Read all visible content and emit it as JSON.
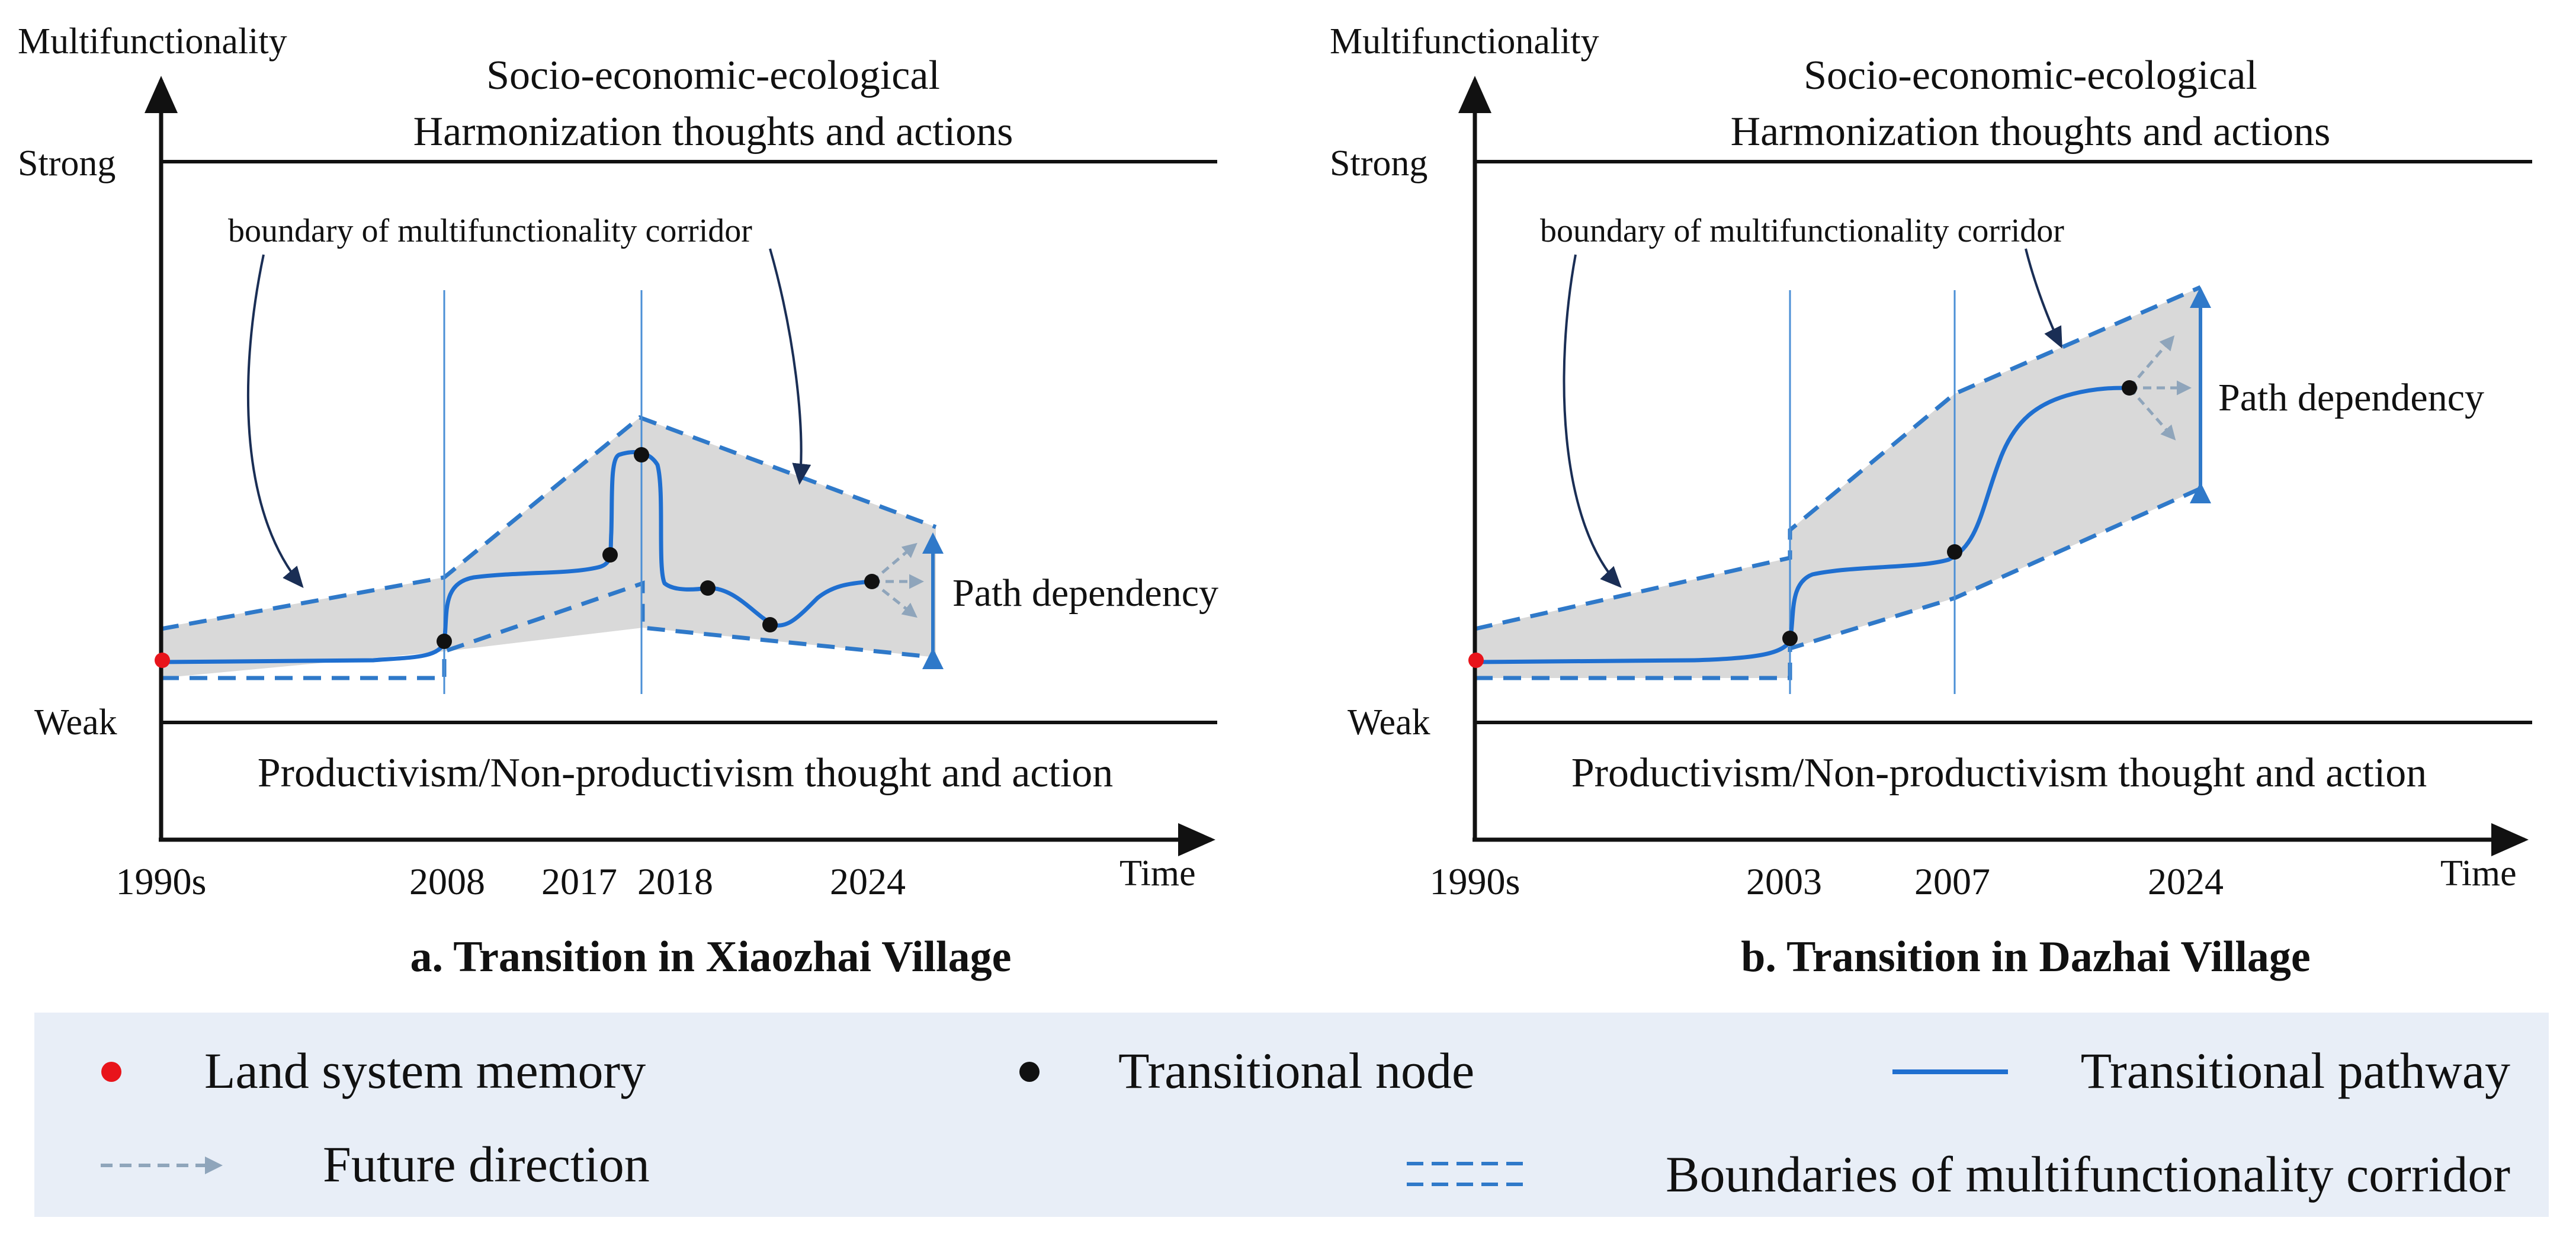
{
  "colors": {
    "corridor_fill": "#d9d9d9",
    "boundary": "#2f79c9",
    "pathway": "#1f6fd0",
    "node": "#111111",
    "memory": "#e8141b",
    "future_arrow": "#8fa5bb",
    "legend_bg": "#e8eef7"
  },
  "panels": [
    {
      "id": "a",
      "y_axis_title": "Multifunctionality",
      "x_axis_title": "Time",
      "level_strong": "Strong",
      "level_weak": "Weak",
      "top_band": [
        "Socio-economic-ecological",
        "Harmonization thoughts and actions"
      ],
      "bottom_band": "Productivism/Non-productivism thought and action",
      "corridor_label": "boundary of multifunctionality corridor",
      "path_dependency": "Path dependency",
      "x_ticks": [
        "1990s",
        "2008",
        "2017",
        "2018",
        "2024"
      ],
      "caption": "a. Transition in Xiaozhai Village"
    },
    {
      "id": "b",
      "y_axis_title": "Multifunctionality",
      "x_axis_title": "Time",
      "level_strong": "Strong",
      "level_weak": "Weak",
      "top_band": [
        "Socio-economic-ecological",
        "Harmonization thoughts and actions"
      ],
      "bottom_band": "Productivism/Non-productivism thought and action",
      "corridor_label": "boundary of multifunctionality corridor",
      "path_dependency": "Path dependency",
      "x_ticks": [
        "1990s",
        "2003",
        "2007",
        "2024"
      ],
      "caption": "b. Transition in Dazhai Village"
    }
  ],
  "legend": {
    "memory": "Land system memory",
    "node": "Transitional node",
    "pathway": "Transitional pathway",
    "future": "Future direction",
    "boundaries": "Boundaries of multifunctionality corridor"
  }
}
